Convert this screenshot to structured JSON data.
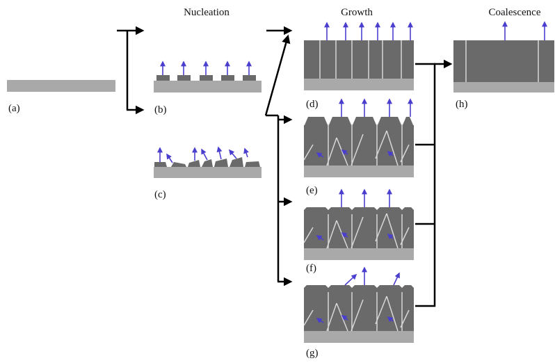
{
  "headers": [
    "Nucleation",
    "Growth",
    "Coalescence"
  ],
  "panels": [
    "(a)",
    "(b)",
    "(c)",
    "(d)",
    "(e)",
    "(f)",
    "(g)",
    "(h)"
  ]
}
